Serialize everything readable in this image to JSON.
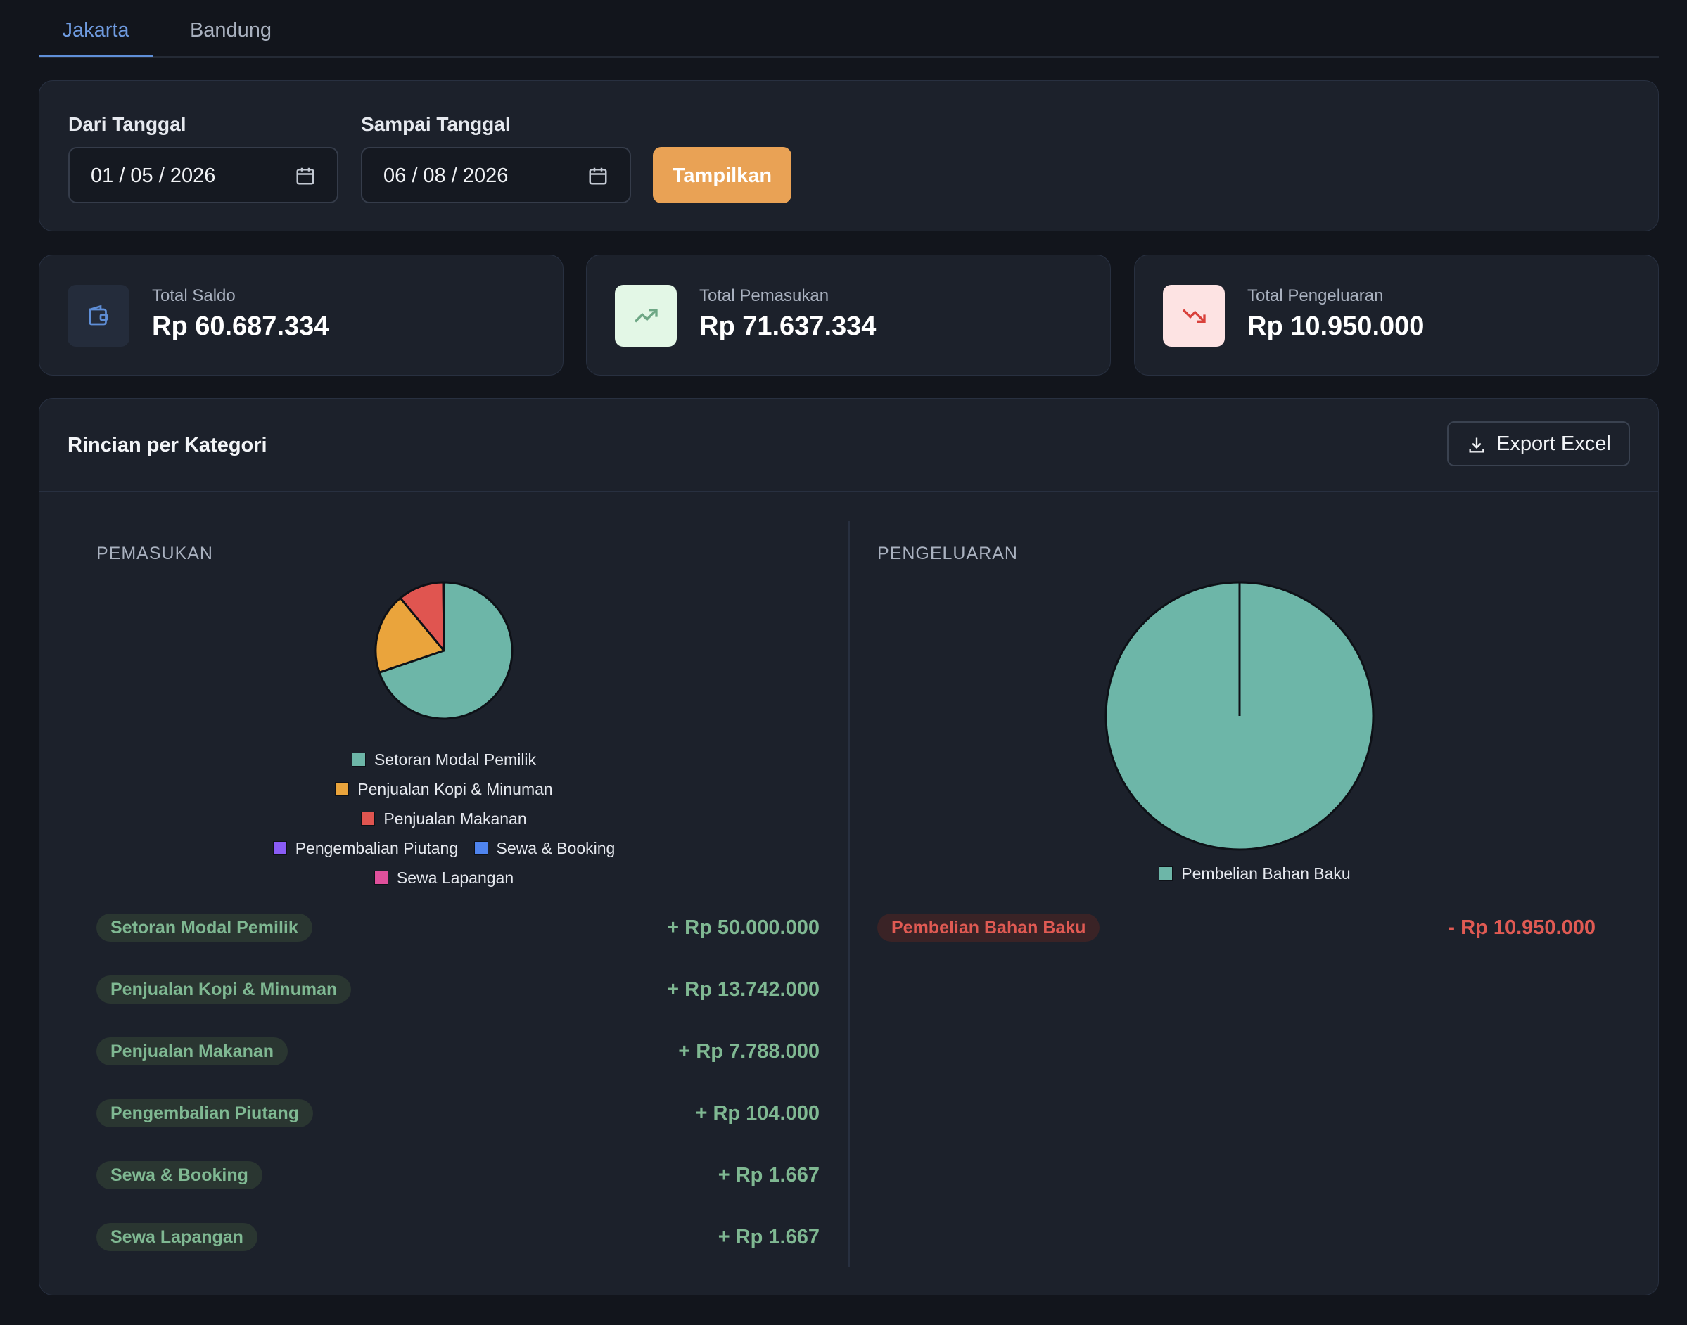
{
  "tabs": [
    {
      "label": "Jakarta",
      "active": true
    },
    {
      "label": "Bandung",
      "active": false
    }
  ],
  "filter": {
    "from_label": "Dari Tanggal",
    "from_value": "01 / 05 / 2026",
    "to_label": "Sampai Tanggal",
    "to_value": "06 / 08 / 2026",
    "show_button": "Tampilkan"
  },
  "stats": [
    {
      "label": "Total Saldo",
      "value": "Rp 60.687.334",
      "icon": "wallet-icon"
    },
    {
      "label": "Total Pemasukan",
      "value": "Rp 71.637.334",
      "icon": "trending-up-icon"
    },
    {
      "label": "Total Pengeluaran",
      "value": "Rp 10.950.000",
      "icon": "trending-down-icon"
    }
  ],
  "detail": {
    "title": "Rincian per Kategori",
    "export_label": "Export Excel",
    "income_heading": "PEMASUKAN",
    "expense_heading": "PENGELUARAN"
  },
  "income_items": [
    {
      "label": "Setoran Modal Pemilik",
      "amount": "+ Rp 50.000.000"
    },
    {
      "label": "Penjualan Kopi & Minuman",
      "amount": "+ Rp 13.742.000"
    },
    {
      "label": "Penjualan Makanan",
      "amount": "+ Rp 7.788.000"
    },
    {
      "label": "Pengembalian Piutang",
      "amount": "+ Rp 104.000"
    },
    {
      "label": "Sewa & Booking",
      "amount": "+ Rp 1.667"
    },
    {
      "label": "Sewa Lapangan",
      "amount": "+ Rp 1.667"
    }
  ],
  "expense_items": [
    {
      "label": "Pembelian Bahan Baku",
      "amount": "- Rp 10.950.000"
    }
  ],
  "colors": {
    "accent": "#5f8fd8",
    "button": "#e9a255",
    "income": "#7fb892",
    "expense": "#e05a53"
  },
  "chart_data": [
    {
      "type": "pie",
      "title": "",
      "categories": [
        "Setoran Modal Pemilik",
        "Penjualan Kopi & Minuman",
        "Penjualan Makanan",
        "Pengembalian Piutang",
        "Sewa & Booking",
        "Sewa Lapangan"
      ],
      "values": [
        50000000,
        13742000,
        7788000,
        104000,
        1667,
        1667
      ],
      "colors": [
        "#6db6a8",
        "#eaa43c",
        "#e05550",
        "#8a5cf6",
        "#4f84ee",
        "#e0509c"
      ],
      "legend": "bottom"
    },
    {
      "type": "pie",
      "title": "",
      "categories": [
        "Pembelian Bahan Baku"
      ],
      "values": [
        10950000
      ],
      "colors": [
        "#6db6a8"
      ],
      "legend": "bottom"
    }
  ]
}
